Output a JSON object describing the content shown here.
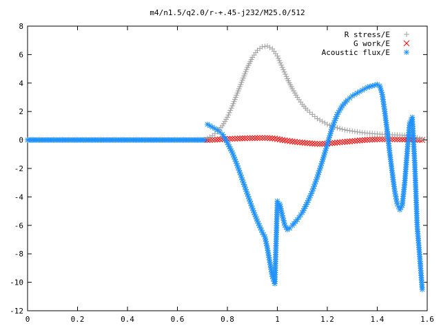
{
  "chart_data": {
    "type": "scatter",
    "title": "m4/n1.5/q2.0/r-+.45-j232/M25.0/512",
    "xlabel": "",
    "ylabel": "",
    "xlim": [
      0,
      1.6
    ],
    "ylim": [
      -12,
      8
    ],
    "xticks": [
      "0",
      "0.2",
      "0.4",
      "0.6",
      "0.8",
      "1",
      "1.2",
      "1.4",
      "1.6"
    ],
    "yticks": [
      "8",
      "6",
      "4",
      "2",
      "0",
      "-2",
      "-4",
      "-6",
      "-8",
      "-10",
      "-12"
    ],
    "grid": false,
    "legend_position": "top-right",
    "series": [
      {
        "name": "R stress/E",
        "marker": "plus",
        "color": "#a0a0a0",
        "x": [
          0.72,
          0.74,
          0.76,
          0.78,
          0.8,
          0.82,
          0.84,
          0.86,
          0.88,
          0.9,
          0.92,
          0.94,
          0.96,
          0.98,
          1.0,
          1.02,
          1.04,
          1.06,
          1.08,
          1.1,
          1.12,
          1.14,
          1.16,
          1.18,
          1.2,
          1.22,
          1.24,
          1.26,
          1.28,
          1.3,
          1.32,
          1.34,
          1.36,
          1.38,
          1.4,
          1.42,
          1.44,
          1.46,
          1.48,
          1.5,
          1.52,
          1.54,
          1.56,
          1.58
        ],
        "y": [
          0.1,
          0.3,
          0.6,
          1.0,
          1.6,
          2.4,
          3.3,
          4.2,
          5.1,
          5.8,
          6.3,
          6.55,
          6.6,
          6.4,
          5.9,
          5.1,
          4.3,
          3.6,
          3.0,
          2.5,
          2.1,
          1.8,
          1.5,
          1.3,
          1.1,
          0.95,
          0.85,
          0.75,
          0.68,
          0.62,
          0.57,
          0.52,
          0.48,
          0.45,
          0.42,
          0.4,
          0.38,
          0.36,
          0.35,
          0.34,
          0.3,
          0.25,
          0.15,
          0.05
        ]
      },
      {
        "name": "G work/E",
        "marker": "cross",
        "color": "#ff0000",
        "x": [
          0.72,
          0.75,
          0.78,
          0.81,
          0.84,
          0.87,
          0.9,
          0.93,
          0.96,
          0.99,
          1.02,
          1.05,
          1.08,
          1.11,
          1.14,
          1.17,
          1.2,
          1.23,
          1.26,
          1.29,
          1.32,
          1.35,
          1.38,
          1.41,
          1.44,
          1.47,
          1.5,
          1.53,
          1.56,
          1.58
        ],
        "y": [
          0.0,
          0.02,
          0.05,
          0.08,
          0.1,
          0.12,
          0.13,
          0.14,
          0.14,
          0.1,
          0.0,
          -0.08,
          -0.15,
          -0.2,
          -0.25,
          -0.28,
          -0.25,
          -0.2,
          -0.15,
          -0.1,
          -0.05,
          0.0,
          0.03,
          0.05,
          0.05,
          0.05,
          0.04,
          0.03,
          0.02,
          0.0
        ]
      },
      {
        "name": "Acoustic flux/E",
        "marker": "star",
        "color": "#1e90ff",
        "x": [
          0.72,
          0.74,
          0.76,
          0.78,
          0.8,
          0.82,
          0.84,
          0.86,
          0.88,
          0.9,
          0.92,
          0.94,
          0.95,
          0.96,
          0.97,
          0.98,
          0.99,
          1.0,
          1.01,
          1.02,
          1.03,
          1.04,
          1.05,
          1.06,
          1.08,
          1.1,
          1.12,
          1.14,
          1.16,
          1.18,
          1.2,
          1.22,
          1.24,
          1.26,
          1.28,
          1.3,
          1.32,
          1.34,
          1.36,
          1.38,
          1.4,
          1.41,
          1.42,
          1.43,
          1.44,
          1.45,
          1.46,
          1.47,
          1.48,
          1.49,
          1.5,
          1.51,
          1.52,
          1.53,
          1.54,
          1.55,
          1.56,
          1.57,
          1.58
        ],
        "y": [
          1.1,
          0.9,
          0.7,
          0.4,
          -0.2,
          -0.9,
          -1.8,
          -2.8,
          -3.8,
          -4.8,
          -5.7,
          -6.5,
          -6.8,
          -7.6,
          -8.6,
          -9.6,
          -10.1,
          -4.3,
          -4.5,
          -5.3,
          -6.0,
          -6.3,
          -6.2,
          -6.0,
          -5.6,
          -5.1,
          -4.4,
          -3.6,
          -2.6,
          -1.5,
          -0.3,
          0.9,
          1.8,
          2.4,
          2.8,
          3.1,
          3.3,
          3.5,
          3.7,
          3.8,
          3.9,
          3.8,
          3.2,
          2.0,
          0.6,
          -0.9,
          -2.3,
          -3.6,
          -4.5,
          -4.9,
          -4.6,
          -3.0,
          -0.8,
          1.2,
          1.6,
          -1.6,
          -6.1,
          -8.2,
          -10.5
        ]
      }
    ],
    "baseline_zero_series": {
      "series_ref": "Acoustic flux/E",
      "x_from": 0.0,
      "x_to": 0.72,
      "y": 0.0
    }
  }
}
